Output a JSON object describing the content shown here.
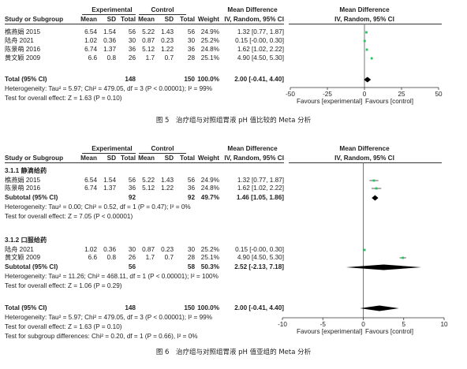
{
  "fig5": {
    "hdr": {
      "experimental": "Experimental",
      "control": "Control",
      "md_title": "Mean Difference",
      "md_title2": "Mean Difference",
      "study": "Study or Subgroup",
      "mean": "Mean",
      "sd": "SD",
      "total": "Total",
      "mean2": "Mean",
      "sd2": "SD",
      "total2": "Total",
      "weight": "Weight",
      "method": "IV, Random, 95% CI",
      "method2": "IV, Random, 95% CI"
    },
    "rows": [
      {
        "study": "樵燕娟 2015",
        "em": "6.54",
        "esd": "1.54",
        "en": "56",
        "cm": "5.22",
        "csd": "1.43",
        "cn": "56",
        "w": "24.9%",
        "ci": "1.32 [0.77, 1.87]"
      },
      {
        "study": "陆舟 2021",
        "em": "1.02",
        "esd": "0.36",
        "en": "30",
        "cm": "0.87",
        "csd": "0.23",
        "cn": "30",
        "w": "25.2%",
        "ci": "0.15 [-0.00, 0.30]"
      },
      {
        "study": "陈景萌 2016",
        "em": "6.74",
        "esd": "1.37",
        "en": "36",
        "cm": "5.12",
        "csd": "1.22",
        "cn": "36",
        "w": "24.8%",
        "ci": "1.62 [1.02, 2.22]"
      },
      {
        "study": "黄文颖 2009",
        "em": "6.6",
        "esd": "0.8",
        "en": "26",
        "cm": "1.7",
        "csd": "0.7",
        "cn": "28",
        "w": "25.1%",
        "ci": "4.90 [4.50, 5.30]"
      }
    ],
    "total": {
      "label": "Total (95% CI)",
      "en": "148",
      "cn": "150",
      "w": "100.0%",
      "ci": "2.00 [-0.41, 4.40]"
    },
    "het": "Heterogeneity: Tau² = 5.97; Chi² = 479.05, df = 3 (P < 0.00001); I² = 99%",
    "overall": "Test for overall effect: Z = 1.63 (P = 0.10)",
    "axis_ticks": [
      "-50",
      "-25",
      "0",
      "25",
      "50"
    ],
    "favours_left": "Favours [experimental]",
    "favours_right": "Favours [control]",
    "caption": "图 5　治疗组与对照组胃液 pH 值比较的 Meta 分析"
  },
  "fig6": {
    "hdr": {
      "experimental": "Experimental",
      "control": "Control",
      "md_title": "Mean Difference",
      "md_title2": "Mean Difference",
      "study": "Study or Subgroup",
      "mean": "Mean",
      "sd": "SD",
      "total": "Total",
      "mean2": "Mean",
      "sd2": "SD",
      "total2": "Total",
      "weight": "Weight",
      "method": "IV, Random, 95% CI",
      "method2": "IV, Random, 95% CI"
    },
    "sub1": {
      "title": "3.1.1 静滴给药",
      "rows": [
        {
          "study": "樵燕娟 2015",
          "em": "6.54",
          "esd": "1.54",
          "en": "56",
          "cm": "5.22",
          "csd": "1.43",
          "cn": "56",
          "w": "24.9%",
          "ci": "1.32 [0.77, 1.87]"
        },
        {
          "study": "陈景萌 2016",
          "em": "6.74",
          "esd": "1.37",
          "en": "36",
          "cm": "5.12",
          "csd": "1.22",
          "cn": "36",
          "w": "24.8%",
          "ci": "1.62 [1.02, 2.22]"
        }
      ],
      "subtotal": {
        "label": "Subtotal (95% CI)",
        "en": "92",
        "cn": "92",
        "w": "49.7%",
        "ci": "1.46 [1.05, 1.86]"
      },
      "het": "Heterogeneity: Tau² = 0.00; Chi² = 0.52, df = 1 (P = 0.47); I² = 0%",
      "overall": "Test for overall effect: Z = 7.05 (P < 0.00001)"
    },
    "sub2": {
      "title": "3.1.2 口服给药",
      "rows": [
        {
          "study": "陆舟 2021",
          "em": "1.02",
          "esd": "0.36",
          "en": "30",
          "cm": "0.87",
          "csd": "0.23",
          "cn": "30",
          "w": "25.2%",
          "ci": "0.15 [-0.00, 0.30]"
        },
        {
          "study": "黄文颖 2009",
          "em": "6.6",
          "esd": "0.8",
          "en": "26",
          "cm": "1.7",
          "csd": "0.7",
          "cn": "28",
          "w": "25.1%",
          "ci": "4.90 [4.50, 5.30]"
        }
      ],
      "subtotal": {
        "label": "Subtotal (95% CI)",
        "en": "56",
        "cn": "58",
        "w": "50.3%",
        "ci": "2.52 [-2.13, 7.18]"
      },
      "het": "Heterogeneity: Tau² = 11.26; Chi² = 468.11, df = 1 (P < 0.00001); I² = 100%",
      "overall": "Test for overall effect: Z = 1.06 (P = 0.29)"
    },
    "total": {
      "label": "Total (95% CI)",
      "en": "148",
      "cn": "150",
      "w": "100.0%",
      "ci": "2.00 [-0.41, 4.40]"
    },
    "het": "Heterogeneity: Tau² = 5.97; Chi² = 479.05, df = 3 (P < 0.00001); I² = 99%",
    "overall": "Test for overall effect: Z = 1.63 (P = 0.10)",
    "subgroup_diff": "Test for subgroup differences: Chi² = 0.20, df = 1 (P = 0.66), I² = 0%",
    "axis_ticks": [
      "-10",
      "-5",
      "0",
      "5",
      "10"
    ],
    "favours_left": "Favours [experimental]",
    "favours_right": "Favours [control]",
    "caption": "图 6　治疗组与对照组胃液 pH 值亚组的 Meta 分析"
  },
  "chart_data": [
    {
      "type": "forest",
      "title": "图 5",
      "xlim": [
        -50,
        50
      ],
      "ticks": [
        -50,
        -25,
        0,
        25,
        50
      ],
      "studies": [
        {
          "name": "樵燕娟 2015",
          "md": 1.32,
          "lo": 0.77,
          "hi": 1.87,
          "weight": 24.9
        },
        {
          "name": "陆舟 2021",
          "md": 0.15,
          "lo": -0.0,
          "hi": 0.3,
          "weight": 25.2
        },
        {
          "name": "陈景萌 2016",
          "md": 1.62,
          "lo": 1.02,
          "hi": 2.22,
          "weight": 24.8
        },
        {
          "name": "黄文颖 2009",
          "md": 4.9,
          "lo": 4.5,
          "hi": 5.3,
          "weight": 25.1
        }
      ],
      "pooled": {
        "md": 2.0,
        "lo": -0.41,
        "hi": 4.4
      },
      "marker_color": "#22c55e"
    },
    {
      "type": "forest",
      "title": "图 6",
      "xlim": [
        -10,
        10
      ],
      "ticks": [
        -10,
        -5,
        0,
        5,
        10
      ],
      "studies": [
        {
          "name": "樵燕娟 2015",
          "md": 1.32,
          "lo": 0.77,
          "hi": 1.87,
          "weight": 24.9
        },
        {
          "name": "陈景萌 2016",
          "md": 1.62,
          "lo": 1.02,
          "hi": 2.22,
          "weight": 24.8
        },
        {
          "name": "陆舟 2021",
          "md": 0.15,
          "lo": -0.0,
          "hi": 0.3,
          "weight": 25.2
        },
        {
          "name": "黄文颖 2009",
          "md": 4.9,
          "lo": 4.5,
          "hi": 5.3,
          "weight": 25.1
        }
      ],
      "subtotals": [
        {
          "md": 1.46,
          "lo": 1.05,
          "hi": 1.86
        },
        {
          "md": 2.52,
          "lo": -2.13,
          "hi": 7.18
        }
      ],
      "pooled": {
        "md": 2.0,
        "lo": -0.41,
        "hi": 4.4
      },
      "marker_color": "#22c55e"
    }
  ]
}
